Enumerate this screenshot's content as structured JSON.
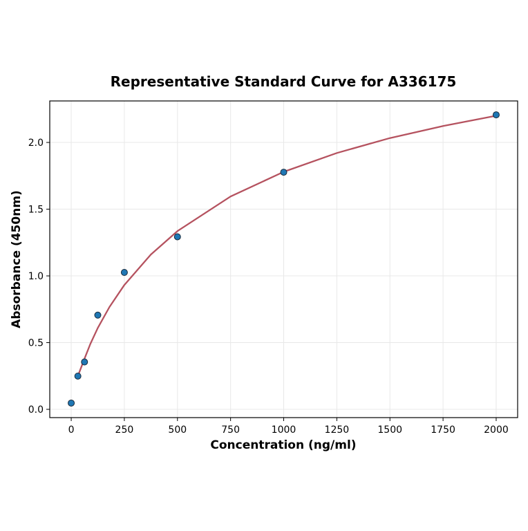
{
  "chart_data": {
    "type": "scatter",
    "title": "Representative Standard Curve for A336175",
    "xlabel": "Concentration (ng/ml)",
    "ylabel": "Absorbance (450nm)",
    "xlim": [
      -101,
      2101
    ],
    "ylim": [
      -0.062,
      2.311
    ],
    "xticks": [
      0,
      250,
      500,
      750,
      1000,
      1250,
      1500,
      1750,
      2000
    ],
    "yticks": [
      0.0,
      0.5,
      1.0,
      1.5,
      2.0
    ],
    "ytick_labels": [
      "0.0",
      "0.5",
      "1.0",
      "1.5",
      "2.0"
    ],
    "grid": true,
    "points": {
      "x": [
        0,
        31.25,
        62.5,
        125,
        250,
        500,
        1000,
        2000
      ],
      "y": [
        0.047,
        0.249,
        0.355,
        0.706,
        1.026,
        1.293,
        1.777,
        2.207
      ],
      "color": "#1f77b4"
    },
    "fit_curve": {
      "x": [
        31.25,
        62.5,
        90,
        125,
        180,
        250,
        375,
        500,
        750,
        1000,
        1250,
        1500,
        1750,
        2000
      ],
      "y": [
        0.25,
        0.38,
        0.49,
        0.61,
        0.767,
        0.932,
        1.16,
        1.336,
        1.595,
        1.78,
        1.921,
        2.033,
        2.123,
        2.2
      ],
      "color": "#b5525f"
    }
  }
}
